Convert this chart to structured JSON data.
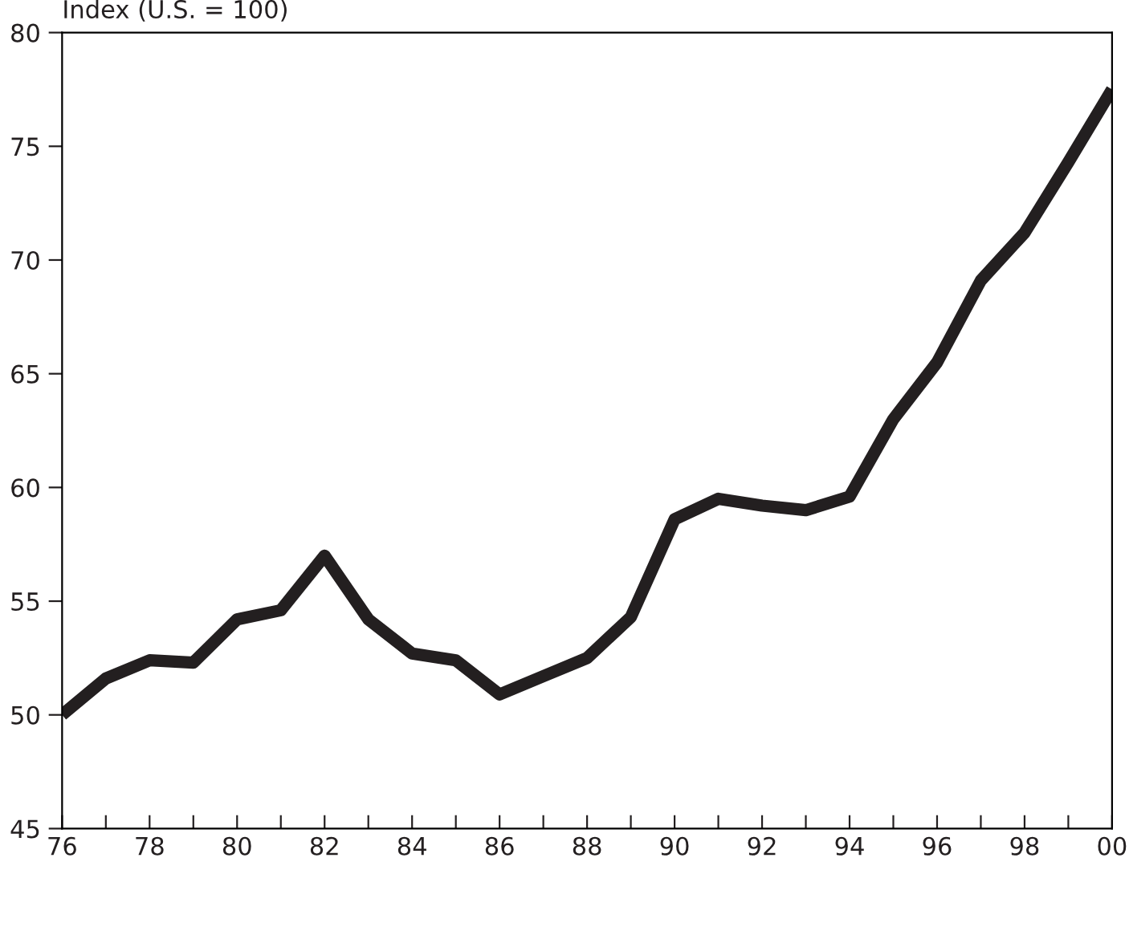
{
  "chart_data": {
    "type": "line",
    "ylabel": "Index (U.S. = 100)",
    "x": [
      1976,
      1977,
      1978,
      1979,
      1980,
      1981,
      1982,
      1983,
      1984,
      1985,
      1986,
      1987,
      1988,
      1989,
      1990,
      1991,
      1992,
      1993,
      1994,
      1995,
      1996,
      1997,
      1998,
      1999,
      2000
    ],
    "series": [
      {
        "color": "#231f20",
        "values": [
          50.0,
          51.6,
          52.4,
          52.3,
          54.2,
          54.6,
          57.0,
          54.2,
          52.7,
          52.4,
          50.9,
          51.7,
          52.5,
          54.3,
          58.6,
          59.5,
          59.2,
          59.0,
          59.6,
          63.0,
          65.5,
          69.1,
          71.2,
          74.3,
          77.5
        ]
      }
    ],
    "xlim": [
      1976,
      2000
    ],
    "ylim": [
      45,
      80
    ],
    "xticks": [
      {
        "value": 1976,
        "label": "76"
      },
      {
        "value": 1977,
        "label": null
      },
      {
        "value": 1978,
        "label": "78"
      },
      {
        "value": 1979,
        "label": null
      },
      {
        "value": 1980,
        "label": "80"
      },
      {
        "value": 1981,
        "label": null
      },
      {
        "value": 1982,
        "label": "82"
      },
      {
        "value": 1983,
        "label": null
      },
      {
        "value": 1984,
        "label": "84"
      },
      {
        "value": 1985,
        "label": null
      },
      {
        "value": 1986,
        "label": "86"
      },
      {
        "value": 1987,
        "label": null
      },
      {
        "value": 1988,
        "label": "88"
      },
      {
        "value": 1989,
        "label": null
      },
      {
        "value": 1990,
        "label": "90"
      },
      {
        "value": 1991,
        "label": null
      },
      {
        "value": 1992,
        "label": "92"
      },
      {
        "value": 1993,
        "label": null
      },
      {
        "value": 1994,
        "label": "94"
      },
      {
        "value": 1995,
        "label": null
      },
      {
        "value": 1996,
        "label": "96"
      },
      {
        "value": 1997,
        "label": null
      },
      {
        "value": 1998,
        "label": "98"
      },
      {
        "value": 1999,
        "label": null
      },
      {
        "value": 2000,
        "label": "00"
      }
    ],
    "yticks": [
      45,
      50,
      55,
      60,
      65,
      70,
      75,
      80
    ],
    "grid": false,
    "legend": false,
    "marker": "none",
    "line_style": "solid"
  }
}
